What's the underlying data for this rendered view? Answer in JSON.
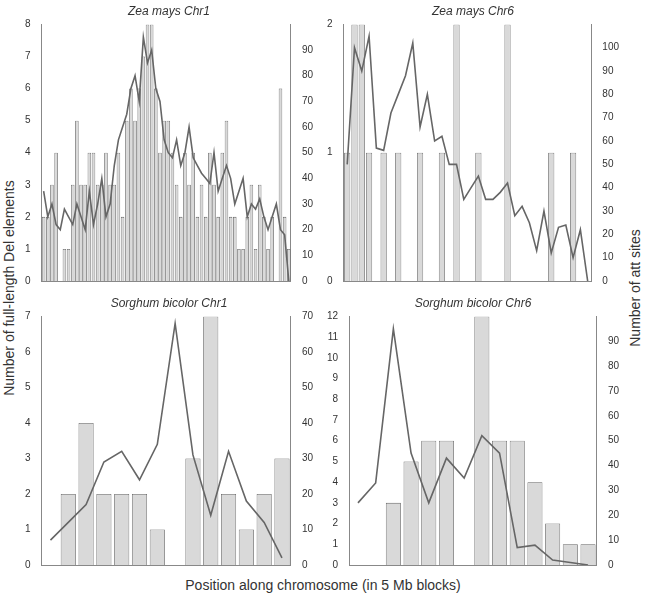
{
  "ylabel": "Number of full-length Del elements",
  "y2label": "Number of att sites",
  "xlabel": "Position along chromosome (in 5 Mb blocks)",
  "chart_data": [
    {
      "type": "bar",
      "title": "Zea mays Chr1",
      "categories": [
        null,
        null,
        null,
        null,
        null,
        null,
        null,
        null,
        null,
        null,
        null,
        null,
        null,
        null,
        null,
        null,
        null,
        null,
        null,
        null,
        null,
        null,
        null,
        null,
        null,
        null,
        null,
        null,
        null,
        null,
        null,
        null,
        null,
        null,
        null,
        null,
        null,
        null,
        null,
        null,
        null,
        null,
        null,
        null,
        null,
        null,
        null,
        null,
        null,
        null,
        null,
        null,
        null,
        null,
        null,
        null,
        null,
        null,
        null,
        null
      ],
      "series": [
        {
          "type": "bar",
          "axis": "y",
          "color": "#d9d9d9",
          "values": [
            2,
            2,
            3,
            4,
            0,
            1,
            1,
            3,
            5,
            3,
            3,
            4,
            4,
            3,
            3,
            4,
            3,
            3,
            4,
            2,
            5,
            6,
            5,
            6,
            7,
            8,
            8,
            6,
            4,
            5,
            5,
            4,
            3,
            2,
            4,
            3,
            4,
            2,
            3,
            2,
            4,
            3,
            2,
            4,
            5,
            2,
            2,
            1,
            1,
            2,
            3,
            1,
            3,
            2,
            1,
            2,
            0,
            6,
            2,
            1
          ]
        },
        {
          "type": "line",
          "axis": "y2",
          "color": "#666666",
          "values": [
            35,
            25,
            30,
            22,
            20,
            28,
            25,
            22,
            30,
            25,
            20,
            35,
            22,
            30,
            40,
            25,
            30,
            45,
            55,
            60,
            65,
            75,
            80,
            70,
            95,
            85,
            90,
            75,
            70,
            55,
            50,
            48,
            55,
            45,
            50,
            60,
            48,
            45,
            42,
            40,
            38,
            50,
            35,
            40,
            45,
            40,
            30,
            35,
            40,
            25,
            30,
            28,
            32,
            25,
            20,
            25,
            30,
            20,
            18,
            0
          ]
        }
      ],
      "ylim": [
        0,
        8
      ],
      "yticks": [
        0,
        1,
        2,
        3,
        4,
        5,
        6,
        7,
        8
      ],
      "y2lim": [
        0,
        100
      ],
      "y2ticks": [
        0,
        10,
        20,
        30,
        40,
        50,
        60,
        70,
        80,
        90
      ],
      "grid": false,
      "tick_labels": "y"
    },
    {
      "type": "bar",
      "title": "Zea mays Chr6",
      "categories": [
        null,
        null,
        null,
        null,
        null,
        null,
        null,
        null,
        null,
        null,
        null,
        null,
        null,
        null,
        null,
        null,
        null,
        null,
        null,
        null,
        null,
        null,
        null,
        null,
        null,
        null,
        null,
        null,
        null,
        null,
        null,
        null,
        null,
        null
      ],
      "series": [
        {
          "type": "bar",
          "axis": "y",
          "color": "#d9d9d9",
          "values": [
            1,
            2,
            2,
            1,
            0,
            1,
            0,
            1,
            0,
            0,
            1,
            0,
            0,
            1,
            0,
            2,
            0,
            0,
            1,
            0,
            0,
            0,
            2,
            0,
            0,
            0,
            0,
            0,
            1,
            0,
            0,
            1,
            0,
            0
          ]
        },
        {
          "type": "line",
          "axis": "y2",
          "color": "#666666",
          "values": [
            50,
            100,
            90,
            105,
            57,
            56,
            72,
            80,
            88,
            102,
            66,
            80,
            60,
            62,
            50,
            50,
            35,
            40,
            45,
            35,
            35,
            38,
            42,
            28,
            32,
            25,
            13,
            30,
            12,
            23,
            24,
            10,
            22,
            0
          ]
        }
      ],
      "ylim": [
        0,
        2
      ],
      "yticks": [
        0,
        1,
        2
      ],
      "y2lim": [
        0,
        110
      ],
      "y2ticks": [
        0,
        10,
        20,
        30,
        40,
        50,
        60,
        70,
        80,
        90,
        100
      ],
      "grid": false,
      "tick_labels": "y"
    },
    {
      "type": "bar",
      "title": "Sorghum bicolor Chr1",
      "categories": [
        null,
        null,
        null,
        null,
        null,
        null,
        null,
        null,
        null,
        null,
        null,
        null,
        null,
        null
      ],
      "series": [
        {
          "type": "bar",
          "axis": "y",
          "color": "#d9d9d9",
          "values": [
            0,
            2,
            4,
            2,
            2,
            2,
            1,
            0,
            3,
            7,
            2,
            1,
            2,
            3
          ]
        },
        {
          "type": "line",
          "axis": "y2",
          "color": "#666666",
          "values": [
            7,
            12,
            17,
            29,
            32,
            24,
            34,
            68,
            31,
            14,
            32,
            18,
            12,
            2
          ]
        }
      ],
      "ylim": [
        0,
        7
      ],
      "yticks": [
        0,
        1,
        2,
        3,
        4,
        5,
        6,
        7
      ],
      "y2lim": [
        0,
        70
      ],
      "y2ticks": [
        0,
        10,
        20,
        30,
        40,
        50,
        60,
        70
      ],
      "grid": false,
      "tick_labels": "y"
    },
    {
      "type": "bar",
      "title": "Sorghum bicolor Chr6",
      "categories": [
        null,
        null,
        null,
        null,
        null,
        null,
        null,
        null,
        null,
        null,
        null,
        null,
        null,
        null
      ],
      "series": [
        {
          "type": "bar",
          "axis": "y",
          "color": "#d9d9d9",
          "values": [
            0,
            0,
            3,
            5,
            6,
            6,
            0,
            12,
            6,
            6,
            4,
            2,
            1,
            1
          ]
        },
        {
          "type": "line",
          "axis": "y2",
          "color": "#666666",
          "values": [
            25,
            33,
            95,
            45,
            25,
            43,
            35,
            52,
            45,
            7,
            8,
            2,
            1,
            0
          ]
        }
      ],
      "ylim": [
        0,
        12
      ],
      "yticks": [
        0,
        1,
        2,
        3,
        4,
        5,
        6,
        7,
        8,
        9,
        10,
        11,
        12
      ],
      "y2lim": [
        0,
        100
      ],
      "y2ticks": [
        0,
        10,
        20,
        30,
        40,
        50,
        60,
        70,
        80,
        90
      ],
      "grid": false,
      "tick_labels": "y"
    }
  ]
}
